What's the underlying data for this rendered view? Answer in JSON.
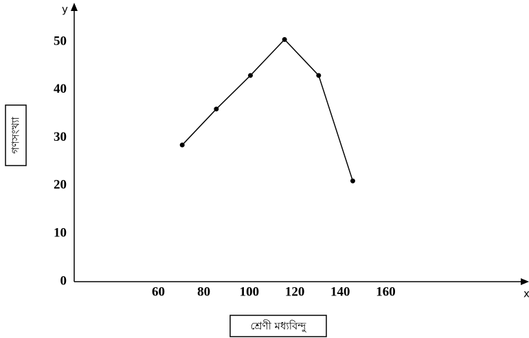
{
  "chart_data": {
    "type": "line",
    "x_axis_letter": "x",
    "y_axis_letter": "y",
    "xlabel": "শ্রেণী মধ্যবিন্দু",
    "ylabel": "গণসংখ্যা",
    "x": [
      70.5,
      85.5,
      100.5,
      115.5,
      130.5,
      145.5
    ],
    "series": [
      {
        "color": "#000000",
        "values": [
          28.5,
          36,
          43,
          50.5,
          43,
          21
        ]
      }
    ],
    "xlim": [
      23,
      223
    ],
    "xticks": [
      60,
      80,
      100,
      120,
      140,
      160
    ],
    "ylim": [
      0,
      57.3
    ],
    "yticks": [
      0,
      10,
      20,
      30,
      40,
      50
    ],
    "grid": false
  }
}
